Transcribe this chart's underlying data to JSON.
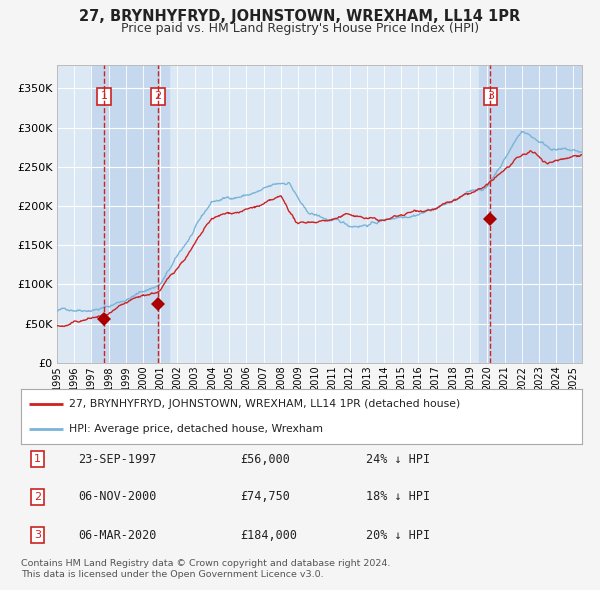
{
  "title": "27, BRYNHYFRYD, JOHNSTOWN, WREXHAM, LL14 1PR",
  "subtitle": "Price paid vs. HM Land Registry's House Price Index (HPI)",
  "title_fontsize": 10.5,
  "subtitle_fontsize": 9,
  "background_color": "#f5f5f5",
  "plot_bg_color": "#dce9f5",
  "grid_color": "#ffffff",
  "hpi_line_color": "#7ab4d8",
  "price_line_color": "#cc2222",
  "sale_marker_color": "#aa0000",
  "dashed_line_color": "#cc2222",
  "highlight_bg_color": "#c5d8ed",
  "ylim": [
    0,
    380000
  ],
  "yticks": [
    0,
    50000,
    100000,
    150000,
    200000,
    250000,
    300000,
    350000
  ],
  "ytick_labels": [
    "£0",
    "£50K",
    "£100K",
    "£150K",
    "£200K",
    "£250K",
    "£300K",
    "£350K"
  ],
  "sale_prices": [
    56000,
    74750,
    184000
  ],
  "sale_dates": [
    1997.73,
    2000.85,
    2020.18
  ],
  "sale_labels": [
    "1",
    "2",
    "3"
  ],
  "sale_table": [
    {
      "num": "1",
      "date": "23-SEP-1997",
      "price": "£56,000",
      "note": "24% ↓ HPI"
    },
    {
      "num": "2",
      "date": "06-NOV-2000",
      "price": "£74,750",
      "note": "18% ↓ HPI"
    },
    {
      "num": "3",
      "date": "06-MAR-2020",
      "price": "£184,000",
      "note": "20% ↓ HPI"
    }
  ],
  "legend_line1": "27, BRYNHYFRYD, JOHNSTOWN, WREXHAM, LL14 1PR (detached house)",
  "legend_line2": "HPI: Average price, detached house, Wrexham",
  "footer_line1": "Contains HM Land Registry data © Crown copyright and database right 2024.",
  "footer_line2": "This data is licensed under the Open Government Licence v3.0.",
  "xmin": 1995.0,
  "xmax": 2025.5,
  "highlight_ranges": [
    [
      1997.0,
      2001.5
    ],
    [
      2019.5,
      2025.5
    ]
  ]
}
